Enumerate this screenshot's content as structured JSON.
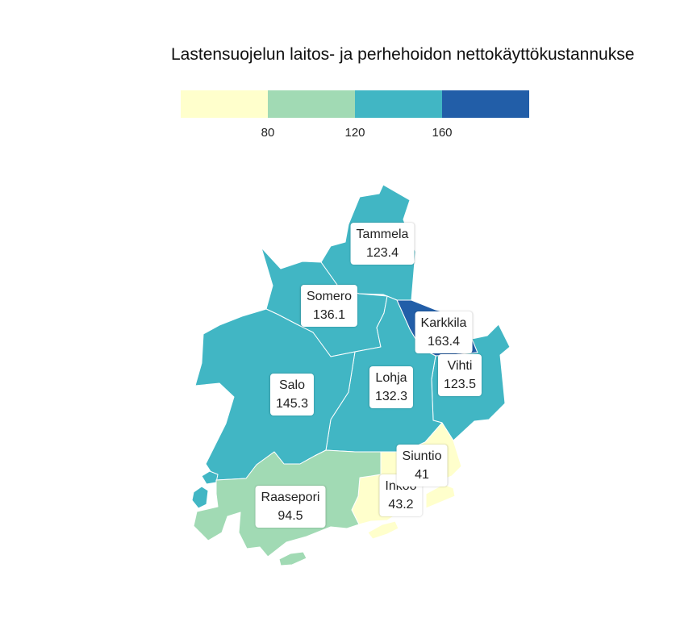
{
  "title": "Lastensuojelun laitos- ja perhehoidon nettokäyttökustannukse",
  "legend": {
    "colors": [
      "#ffffcc",
      "#a1dab4",
      "#41b6c4",
      "#225ea8"
    ],
    "ticks": [
      "80",
      "120",
      "160"
    ]
  },
  "municipalities": [
    {
      "name": "Tammela",
      "value": "123.4",
      "color": "#41b6c4"
    },
    {
      "name": "Somero",
      "value": "136.1",
      "color": "#41b6c4"
    },
    {
      "name": "Karkkila",
      "value": "163.4",
      "color": "#225ea8"
    },
    {
      "name": "Vihti",
      "value": "123.5",
      "color": "#41b6c4"
    },
    {
      "name": "Salo",
      "value": "145.3",
      "color": "#41b6c4"
    },
    {
      "name": "Lohja",
      "value": "132.3",
      "color": "#41b6c4"
    },
    {
      "name": "Siuntio",
      "value": "41",
      "color": "#ffffcc"
    },
    {
      "name": "Inkoo",
      "value": "43.2",
      "color": "#ffffcc"
    },
    {
      "name": "Raasepori",
      "value": "94.5",
      "color": "#a1dab4"
    }
  ]
}
